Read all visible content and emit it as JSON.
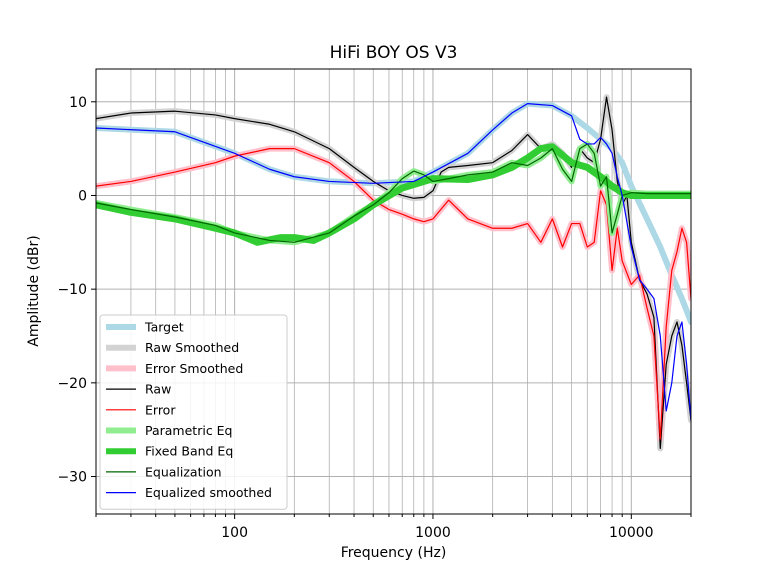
{
  "chart_data": {
    "type": "line",
    "title": "HiFi BOY OS V3",
    "xlabel": "Frequency (Hz)",
    "ylabel": "Amplitude (dBr)",
    "xscale": "log",
    "xlim": [
      20,
      20000
    ],
    "ylim": [
      -34,
      13.5
    ],
    "grid": true,
    "legend_position": "lower-left",
    "x_ticks": [
      {
        "value": 100,
        "label": "100"
      },
      {
        "value": 1000,
        "label": "1000"
      },
      {
        "value": 10000,
        "label": "10000"
      }
    ],
    "y_ticks": [
      {
        "value": 10,
        "label": "10"
      },
      {
        "value": 0,
        "label": "0"
      },
      {
        "value": -10,
        "label": "−10"
      },
      {
        "value": -20,
        "label": "−20"
      },
      {
        "value": -30,
        "label": "−30"
      }
    ],
    "series": [
      {
        "name": "Target",
        "color": "#add8e6",
        "width": 6,
        "x": [
          20,
          50,
          100,
          150,
          200,
          300,
          500,
          800,
          1000,
          1500,
          2000,
          2500,
          3000,
          4000,
          5000,
          6000,
          7000,
          8000,
          9000,
          10000,
          12000,
          14000,
          16000,
          18000,
          20000
        ],
        "y": [
          7.2,
          6.8,
          4.5,
          2.8,
          2,
          1.5,
          1.3,
          1.5,
          2.5,
          4.5,
          7,
          8.8,
          9.8,
          9.6,
          8.5,
          7.2,
          6,
          5,
          3.5,
          1,
          -2.5,
          -5.5,
          -8.5,
          -11,
          -13.5
        ]
      },
      {
        "name": "Raw Smoothed",
        "color": "#d3d3d3",
        "width": 6,
        "x": [
          20,
          30,
          50,
          80,
          100,
          150,
          200,
          300,
          400,
          500,
          600,
          700,
          800,
          900,
          1000,
          1100,
          1200,
          1500,
          2000,
          2500,
          3000,
          3500,
          4000,
          4500,
          5000,
          5500,
          6000,
          6500,
          7000,
          7500,
          8000,
          8500,
          9000,
          9500,
          10000,
          11000,
          12000,
          13000,
          14000,
          15000,
          16000,
          17000,
          18000,
          19000,
          20000
        ],
        "y": [
          8.2,
          8.8,
          9,
          8.6,
          8.2,
          7.6,
          6.8,
          5,
          3,
          1.5,
          0.5,
          0,
          -0.3,
          -0.2,
          0.5,
          2.5,
          3,
          3.2,
          3.5,
          4.8,
          6.5,
          5,
          5.5,
          4.5,
          3,
          5,
          4,
          3.5,
          6,
          10.5,
          7,
          1.5,
          -1,
          0,
          -5,
          -9,
          -10.5,
          -13,
          -27,
          -18,
          -15,
          -13.5,
          -16,
          -20,
          -24
        ]
      },
      {
        "name": "Error Smoothed",
        "color": "#ffc0cb",
        "width": 6,
        "x": [
          20,
          30,
          50,
          80,
          100,
          150,
          200,
          300,
          400,
          500,
          600,
          700,
          800,
          900,
          1000,
          1200,
          1500,
          2000,
          2500,
          3000,
          3500,
          4000,
          4500,
          5000,
          5500,
          6000,
          6500,
          7000,
          7500,
          8000,
          8500,
          9000,
          10000,
          11000,
          12000,
          13000,
          14000,
          15000,
          16000,
          17000,
          18000,
          19000,
          20000
        ],
        "y": [
          1,
          1.5,
          2.5,
          3.5,
          4.2,
          5,
          5,
          3.5,
          1.5,
          -0.5,
          -1.5,
          -2,
          -2.5,
          -2.8,
          -2.5,
          -0.5,
          -2.5,
          -3.5,
          -3.5,
          -3,
          -5,
          -2.5,
          -5.5,
          -3,
          -3,
          -5.5,
          -5,
          0.5,
          -1,
          -8,
          -3.5,
          -7,
          -9.5,
          -8.5,
          -12,
          -15,
          -26,
          -14,
          -8,
          -6,
          -3.5,
          -5,
          -11
        ]
      },
      {
        "name": "Raw",
        "color": "#000000",
        "width": 1.2,
        "ref": "Raw Smoothed"
      },
      {
        "name": "Error",
        "color": "#ff0000",
        "width": 1.2,
        "ref": "Error Smoothed"
      },
      {
        "name": "Parametric Eq",
        "color": "#90ee90",
        "width": 6,
        "x": [
          20,
          30,
          50,
          80,
          100,
          150,
          200,
          300,
          400,
          500,
          600,
          700,
          800,
          900,
          1000,
          1200,
          1500,
          2000,
          2500,
          3000,
          3500,
          4000,
          4500,
          5000,
          5500,
          6000,
          6500,
          7000,
          7500,
          8000,
          8500,
          9000,
          10000,
          12000,
          15000,
          20000
        ],
        "y": [
          -0.8,
          -1.5,
          -2.3,
          -3.2,
          -4,
          -4.8,
          -5,
          -4,
          -2.2,
          -1,
          0.3,
          1.8,
          2.6,
          2.2,
          1.5,
          1.8,
          2.2,
          2.5,
          3.5,
          3.2,
          4,
          5,
          2.8,
          1.5,
          5,
          5.5,
          4.5,
          1,
          2,
          -4,
          -2,
          0,
          0.3,
          0.2,
          0.2,
          0.2
        ]
      },
      {
        "name": "Fixed Band Eq",
        "color": "#32cd32",
        "width": 7,
        "x": [
          20,
          30,
          50,
          80,
          100,
          130,
          170,
          200,
          250,
          300,
          400,
          500,
          700,
          1000,
          1500,
          2000,
          2500,
          3000,
          3500,
          4000,
          5000,
          6000,
          7000,
          8000,
          9000,
          10000,
          15000,
          20000
        ],
        "y": [
          -1,
          -1.8,
          -2.5,
          -3.5,
          -4,
          -5,
          -4.5,
          -4.5,
          -4.8,
          -4,
          -2.5,
          -1,
          0.8,
          1.8,
          1.7,
          2.2,
          3,
          4,
          5,
          5.2,
          3.5,
          3,
          2,
          1,
          0.3,
          0,
          0,
          0
        ]
      },
      {
        "name": "Equalization",
        "color": "#006400",
        "width": 1.2,
        "ref": "Parametric Eq"
      },
      {
        "name": "Equalized smoothed",
        "color": "#0000ff",
        "width": 1.2,
        "x": [
          20,
          50,
          100,
          150,
          200,
          300,
          500,
          800,
          1000,
          1500,
          2000,
          2500,
          3000,
          4000,
          5000,
          5500,
          6000,
          6500,
          7000,
          7500,
          8000,
          8500,
          9000,
          10000,
          11000,
          12000,
          13000,
          14000,
          15000,
          16000,
          17000,
          18000,
          19000,
          20000
        ],
        "y": [
          7.2,
          6.8,
          4.5,
          2.8,
          2,
          1.5,
          1.3,
          1.5,
          2.5,
          4.5,
          7,
          8.8,
          9.8,
          9.6,
          8.5,
          6,
          5.5,
          5.5,
          6.2,
          5.5,
          4.5,
          2,
          0,
          -5.5,
          -9,
          -10,
          -11,
          -15,
          -23,
          -20,
          -15,
          -13.5,
          -18,
          -24
        ]
      }
    ]
  }
}
